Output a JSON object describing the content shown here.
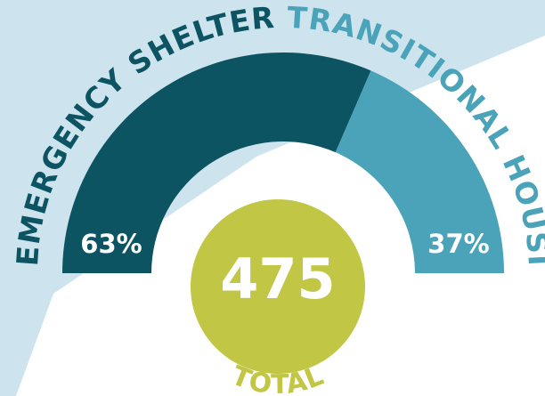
{
  "chart_data": {
    "type": "pie",
    "categories": [
      "EMERGENCY SHELTER",
      "TRANSITIONAL HOUSING"
    ],
    "values": [
      63,
      37
    ],
    "value_labels": [
      "63%",
      "37%"
    ],
    "colors": [
      "#0d5463",
      "#4aa3b8"
    ],
    "total": 475,
    "total_label": "TOTAL",
    "total_color": "#c2c645"
  }
}
